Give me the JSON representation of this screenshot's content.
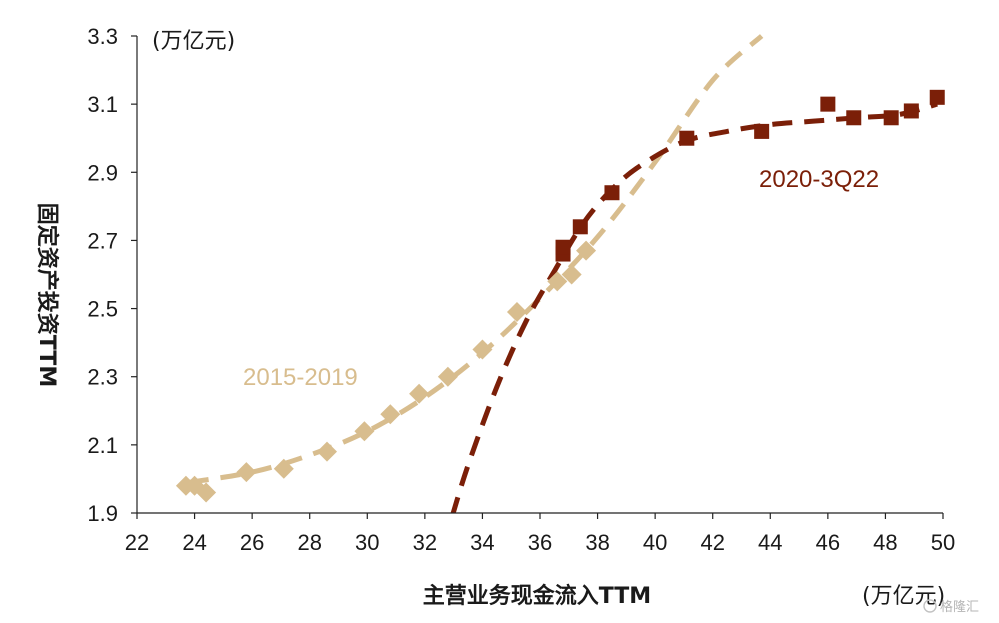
{
  "chart_data": {
    "type": "scatter",
    "xlabel": "主营业务现金流入TTM",
    "ylabel": "固定资产投资TTM",
    "x_unit": "(万亿元)",
    "y_unit": "(万亿元)",
    "xlim": [
      22,
      50
    ],
    "ylim": [
      1.9,
      3.3
    ],
    "x_ticks": [
      "22",
      "24",
      "26",
      "28",
      "30",
      "32",
      "34",
      "36",
      "38",
      "40",
      "42",
      "44",
      "46",
      "48",
      "50"
    ],
    "y_ticks": [
      "1.9",
      "2.1",
      "2.3",
      "2.5",
      "2.7",
      "2.9",
      "3.1",
      "3.3"
    ],
    "grid": false,
    "trendline": "polynomial (dashed)",
    "series": [
      {
        "name": "2015-2019",
        "color": "#d8bd8e",
        "marker": "diamond",
        "points": [
          [
            23.7,
            1.98
          ],
          [
            24.0,
            1.98
          ],
          [
            24.4,
            1.96
          ],
          [
            25.8,
            2.02
          ],
          [
            27.1,
            2.03
          ],
          [
            28.6,
            2.08
          ],
          [
            29.9,
            2.14
          ],
          [
            30.8,
            2.19
          ],
          [
            31.8,
            2.25
          ],
          [
            32.8,
            2.3
          ],
          [
            34.0,
            2.38
          ],
          [
            35.2,
            2.49
          ],
          [
            36.6,
            2.58
          ],
          [
            37.1,
            2.6
          ],
          [
            37.6,
            2.67
          ]
        ],
        "trend": [
          [
            23.8,
            1.99
          ],
          [
            26,
            2.02
          ],
          [
            28,
            2.07
          ],
          [
            30,
            2.14
          ],
          [
            32,
            2.24
          ],
          [
            34,
            2.37
          ],
          [
            36,
            2.53
          ],
          [
            38,
            2.71
          ],
          [
            40,
            2.93
          ],
          [
            42,
            3.17
          ],
          [
            43.7,
            3.3
          ]
        ]
      },
      {
        "name": "2020-3Q22",
        "color": "#7b1f08",
        "marker": "square",
        "points": [
          [
            36.8,
            2.66
          ],
          [
            36.8,
            2.68
          ],
          [
            37.4,
            2.74
          ],
          [
            38.5,
            2.84
          ],
          [
            41.1,
            3.0
          ],
          [
            43.7,
            3.02
          ],
          [
            46.0,
            3.1
          ],
          [
            46.9,
            3.06
          ],
          [
            48.2,
            3.06
          ],
          [
            48.9,
            3.08
          ],
          [
            49.8,
            3.12
          ]
        ],
        "trend": [
          [
            32.95,
            1.89
          ],
          [
            33.5,
            2.04
          ],
          [
            34.5,
            2.27
          ],
          [
            35.5,
            2.46
          ],
          [
            36.5,
            2.61
          ],
          [
            37.5,
            2.75
          ],
          [
            38.5,
            2.85
          ],
          [
            39.5,
            2.92
          ],
          [
            41,
            2.99
          ],
          [
            42.5,
            3.02
          ],
          [
            44,
            3.04
          ],
          [
            45.5,
            3.05
          ],
          [
            47,
            3.06
          ],
          [
            48.5,
            3.07
          ],
          [
            49.8,
            3.1
          ]
        ]
      }
    ]
  },
  "watermark": "格隆汇"
}
